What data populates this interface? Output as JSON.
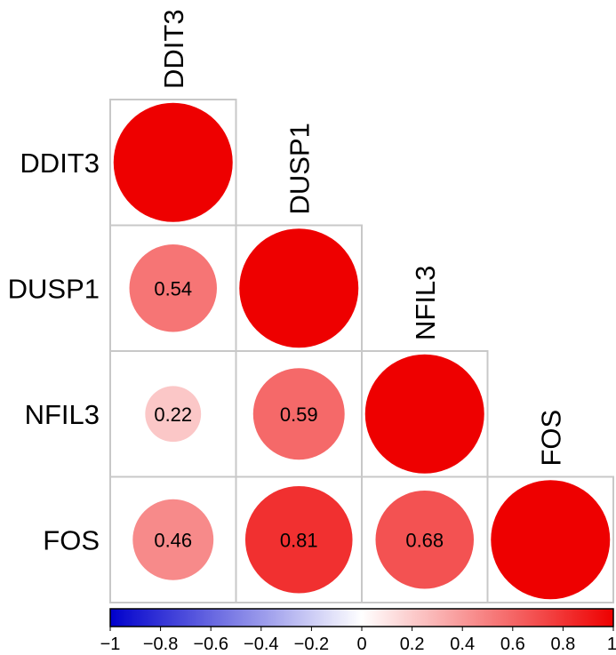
{
  "chart_data": {
    "type": "heatmap",
    "variables": [
      "DDIT3",
      "DUSP1",
      "NFIL3",
      "FOS"
    ],
    "matrix": [
      [
        1,
        null,
        null,
        null
      ],
      [
        0.54,
        1,
        null,
        null
      ],
      [
        0.22,
        0.59,
        1,
        null
      ],
      [
        0.46,
        0.81,
        0.68,
        1
      ]
    ],
    "cell_labels": [
      [
        "",
        "",
        "",
        ""
      ],
      [
        "0.54",
        "",
        "",
        ""
      ],
      [
        "0.22",
        "0.59",
        "",
        ""
      ],
      [
        "0.46",
        "0.81",
        "0.68",
        ""
      ]
    ],
    "colorbar": {
      "range": [
        -1,
        1
      ],
      "ticks": [
        -1,
        -0.8,
        -0.6,
        -0.4,
        -0.2,
        0,
        0.2,
        0.4,
        0.6,
        0.8,
        1
      ],
      "tick_labels": [
        "−1",
        "−0.8",
        "−0.6",
        "−0.4",
        "−0.2",
        "0",
        "0.2",
        "0.4",
        "0.6",
        "0.8",
        "1"
      ],
      "colors": {
        "negative": "#0000CC",
        "zero": "#FFFFFF",
        "positive": "#EE0000"
      }
    },
    "marker": "circle",
    "layout": "lower-triangle",
    "grid": true,
    "colors": {
      "cell_border": "#C8C8C8",
      "label": "#000000"
    }
  }
}
